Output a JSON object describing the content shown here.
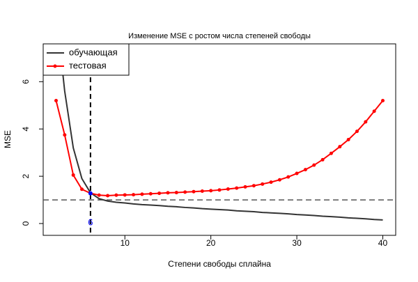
{
  "chart_data": {
    "type": "line",
    "title": "Изменение MSE с ростом числа степеней свободы",
    "x_label": "Степени свободы сплайна",
    "y_label": "MSE",
    "x": [
      2,
      3,
      4,
      5,
      6,
      7,
      8,
      9,
      10,
      11,
      12,
      13,
      14,
      15,
      16,
      17,
      18,
      19,
      20,
      21,
      22,
      23,
      24,
      25,
      26,
      27,
      28,
      29,
      30,
      31,
      32,
      33,
      34,
      35,
      36,
      37,
      38,
      39,
      40
    ],
    "series": [
      {
        "name": "обучающая",
        "color": "#333333",
        "points": false,
        "values": [
          9.0,
          5.6,
          3.2,
          1.9,
          1.3,
          1.05,
          0.95,
          0.9,
          0.87,
          0.83,
          0.8,
          0.78,
          0.76,
          0.73,
          0.71,
          0.68,
          0.66,
          0.63,
          0.61,
          0.59,
          0.57,
          0.54,
          0.52,
          0.5,
          0.47,
          0.45,
          0.43,
          0.41,
          0.38,
          0.36,
          0.34,
          0.31,
          0.29,
          0.27,
          0.24,
          0.22,
          0.2,
          0.17,
          0.15
        ]
      },
      {
        "name": "тестовая",
        "color": "#ff0000",
        "points": true,
        "values": [
          5.2,
          3.75,
          2.05,
          1.45,
          1.28,
          1.2,
          1.18,
          1.2,
          1.21,
          1.22,
          1.24,
          1.26,
          1.28,
          1.3,
          1.31,
          1.33,
          1.35,
          1.37,
          1.39,
          1.42,
          1.46,
          1.5,
          1.55,
          1.6,
          1.67,
          1.75,
          1.85,
          1.97,
          2.12,
          2.28,
          2.47,
          2.7,
          2.97,
          3.25,
          3.55,
          3.9,
          4.3,
          4.75,
          5.2
        ]
      }
    ],
    "vline": 6,
    "hline": 1.0,
    "marker": {
      "x": 6,
      "y": 1.28,
      "color": "#0000ff"
    },
    "xlim": [
      0.5,
      41.5
    ],
    "ylim": [
      -0.5,
      7.6
    ],
    "xticks": [
      10,
      20,
      30,
      40
    ],
    "yticks": [
      0,
      2,
      4,
      6
    ],
    "legend": "top-left"
  }
}
